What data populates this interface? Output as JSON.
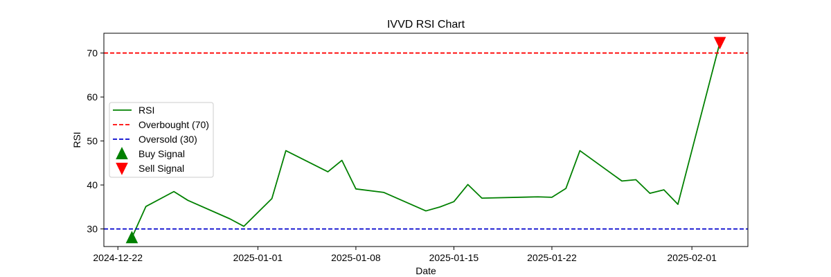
{
  "chart_data": {
    "type": "line",
    "title": "IVVD RSI Chart",
    "xlabel": "Date",
    "ylabel": "RSI",
    "xlim": [
      "2024-12-21",
      "2025-02-05"
    ],
    "ylim": [
      26,
      74.5
    ],
    "x_ticks": [
      "2024-12-22",
      "2025-01-01",
      "2025-01-08",
      "2025-01-15",
      "2025-01-22",
      "2025-02-01"
    ],
    "y_ticks": [
      30,
      40,
      50,
      60,
      70
    ],
    "grid": false,
    "legend_position": "center-left",
    "series": [
      {
        "name": "RSI",
        "color": "#008000",
        "style": "solid",
        "points": [
          {
            "x": "2024-12-23",
            "y": 28.0
          },
          {
            "x": "2024-12-24",
            "y": 35.1
          },
          {
            "x": "2024-12-26",
            "y": 38.5
          },
          {
            "x": "2024-12-27",
            "y": 36.5
          },
          {
            "x": "2024-12-30",
            "y": 32.3
          },
          {
            "x": "2024-12-31",
            "y": 30.6
          },
          {
            "x": "2025-01-02",
            "y": 36.9
          },
          {
            "x": "2025-01-03",
            "y": 47.8
          },
          {
            "x": "2025-01-06",
            "y": 43.0
          },
          {
            "x": "2025-01-07",
            "y": 45.6
          },
          {
            "x": "2025-01-08",
            "y": 39.1
          },
          {
            "x": "2025-01-10",
            "y": 38.3
          },
          {
            "x": "2025-01-13",
            "y": 34.1
          },
          {
            "x": "2025-01-14",
            "y": 35.0
          },
          {
            "x": "2025-01-15",
            "y": 36.2
          },
          {
            "x": "2025-01-16",
            "y": 40.1
          },
          {
            "x": "2025-01-17",
            "y": 37.0
          },
          {
            "x": "2025-01-21",
            "y": 37.3
          },
          {
            "x": "2025-01-22",
            "y": 37.2
          },
          {
            "x": "2025-01-23",
            "y": 39.2
          },
          {
            "x": "2025-01-24",
            "y": 47.8
          },
          {
            "x": "2025-01-27",
            "y": 40.9
          },
          {
            "x": "2025-01-28",
            "y": 41.2
          },
          {
            "x": "2025-01-29",
            "y": 38.1
          },
          {
            "x": "2025-01-30",
            "y": 38.9
          },
          {
            "x": "2025-01-31",
            "y": 35.6
          },
          {
            "x": "2025-02-03",
            "y": 72.4
          }
        ]
      },
      {
        "name": "Overbought (70)",
        "color": "#ff0000",
        "style": "dashed",
        "hline": 70
      },
      {
        "name": "Oversold (30)",
        "color": "#0000cc",
        "style": "dashed",
        "hline": 30
      }
    ],
    "markers": [
      {
        "name": "Buy Signal",
        "shape": "triangle-up",
        "color": "#008000",
        "points": [
          {
            "x": "2024-12-23",
            "y": 28.0
          }
        ]
      },
      {
        "name": "Sell Signal",
        "shape": "triangle-down",
        "color": "#ff0000",
        "points": [
          {
            "x": "2025-02-03",
            "y": 72.4
          }
        ]
      }
    ],
    "legend": [
      {
        "label": "RSI",
        "kind": "line",
        "color": "#008000"
      },
      {
        "label": "Overbought (70)",
        "kind": "dashed",
        "color": "#ff0000"
      },
      {
        "label": "Oversold (30)",
        "kind": "dashed",
        "color": "#0000cc"
      },
      {
        "label": "Buy Signal",
        "kind": "triangle-up",
        "color": "#008000"
      },
      {
        "label": "Sell Signal",
        "kind": "triangle-down",
        "color": "#ff0000"
      }
    ]
  }
}
